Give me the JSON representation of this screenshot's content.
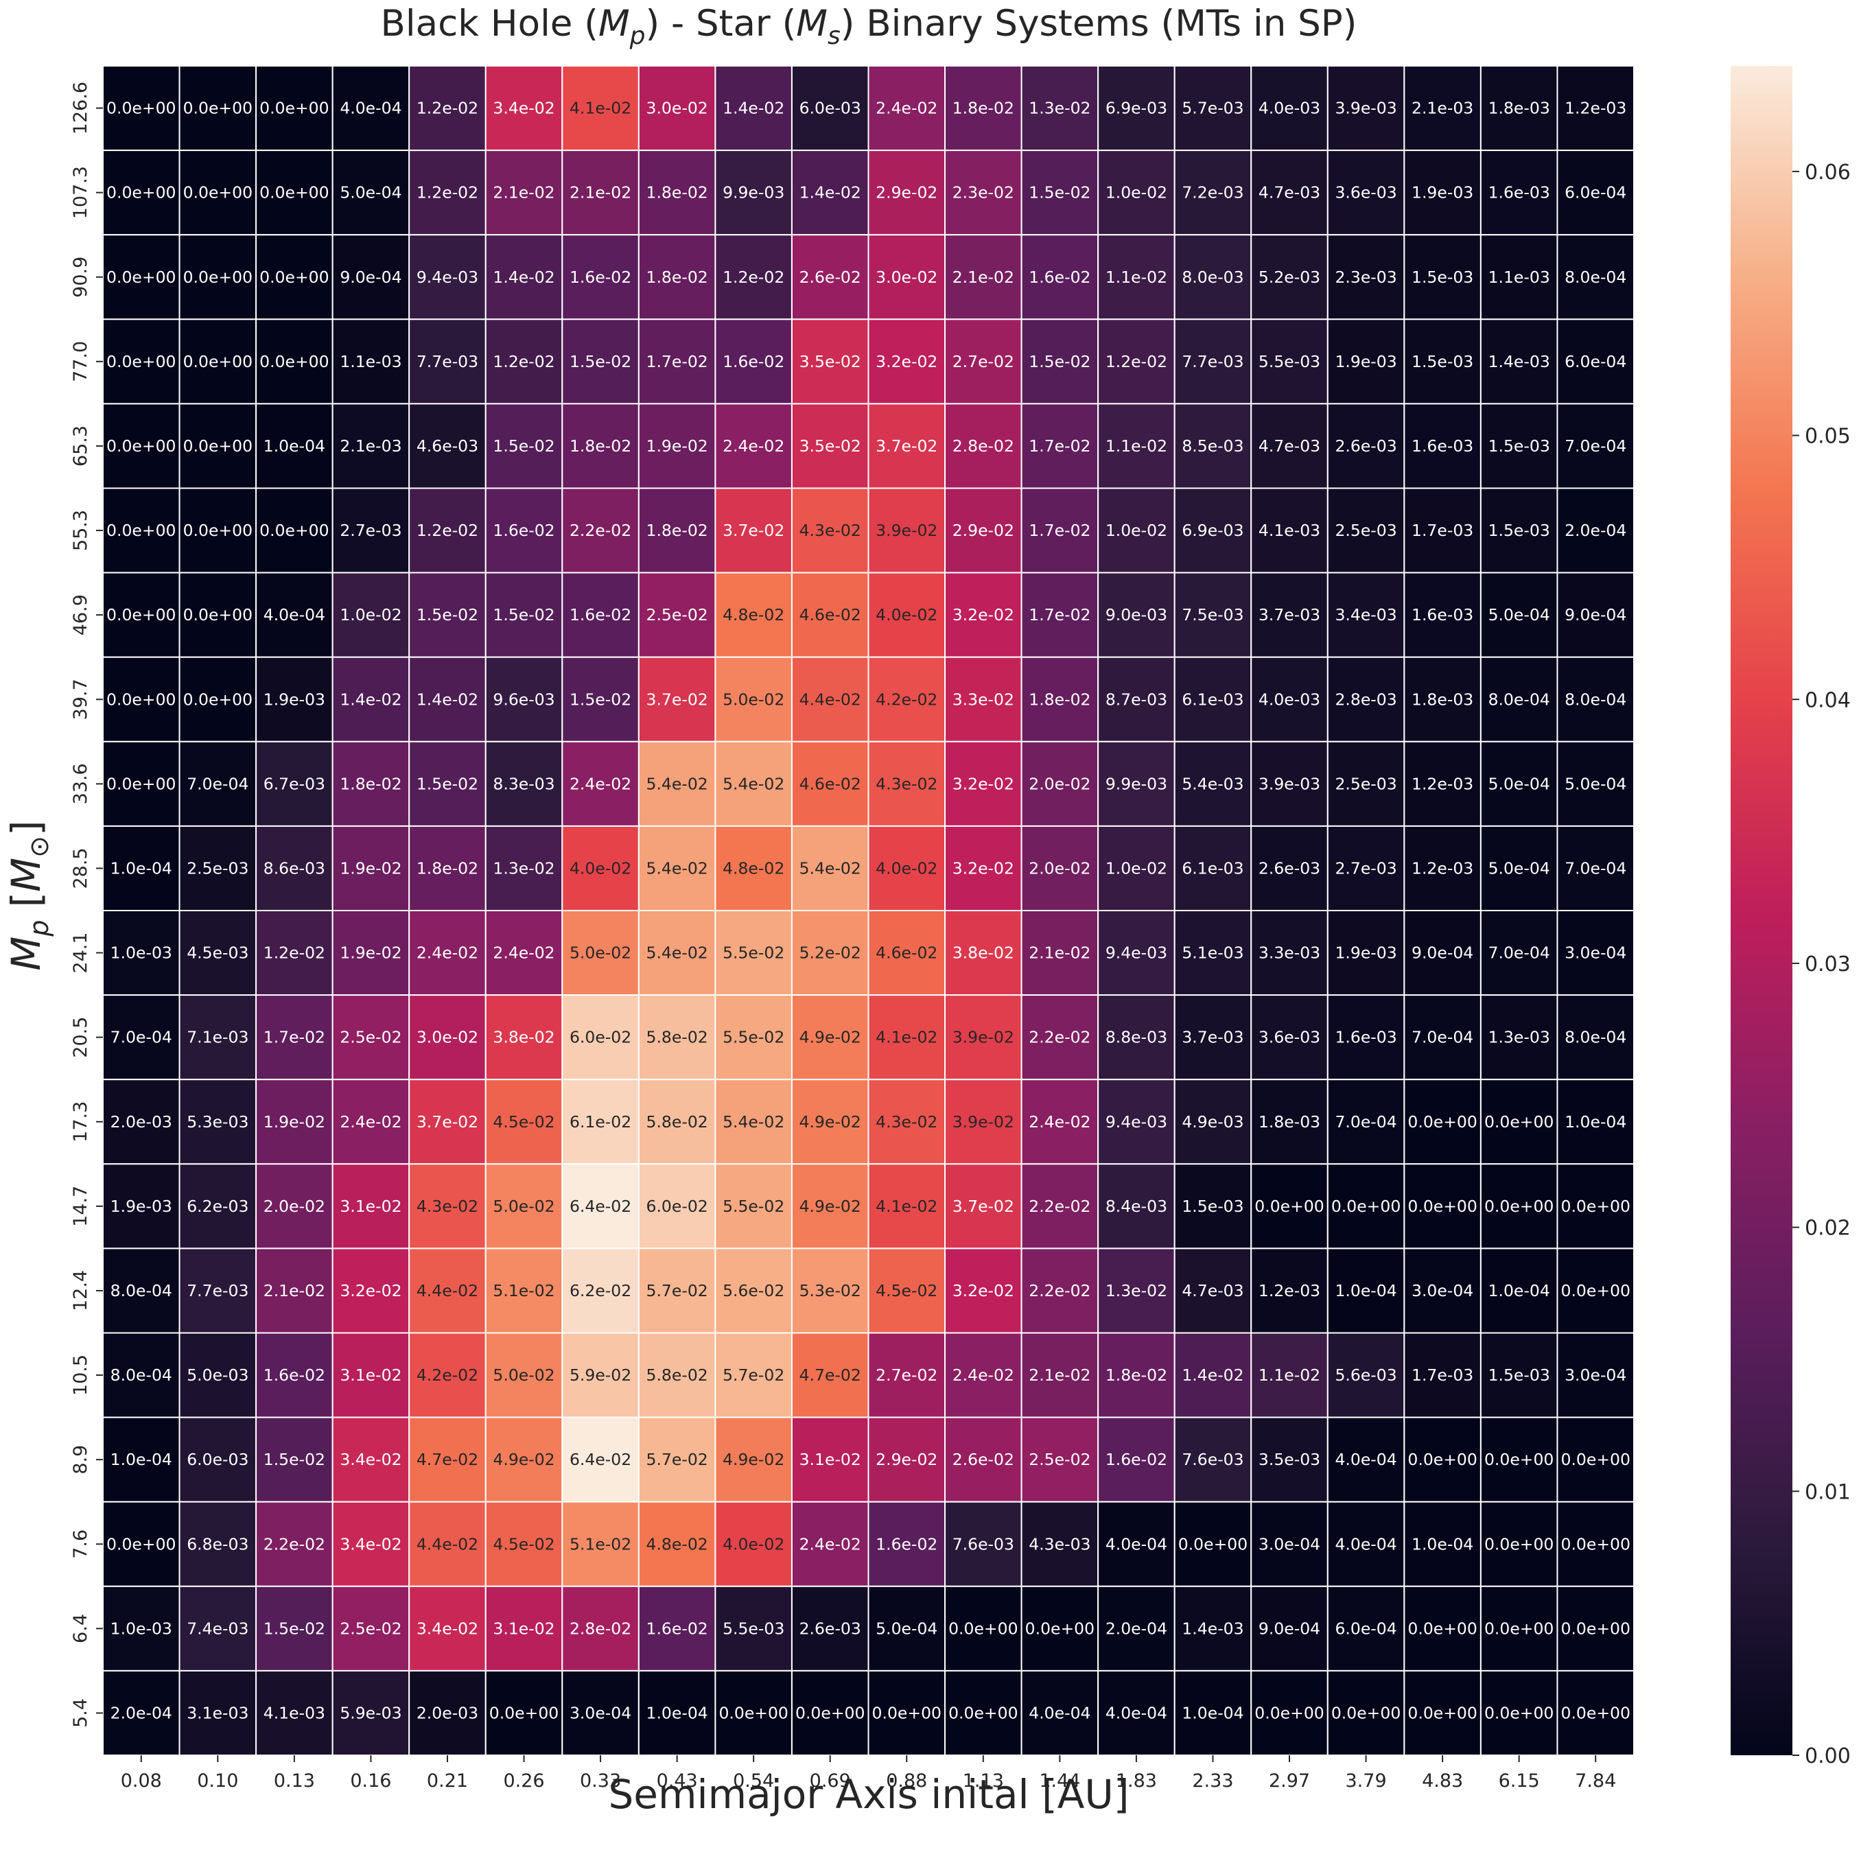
{
  "chart_data": {
    "type": "heatmap",
    "title": "Black Hole ($M_p$)  - Star ($M_s$) Binary Systems (MTs in SP)",
    "title_parts": {
      "p1": "Black Hole (",
      "m1": "M",
      "s1": "p",
      "p2": ")  - Star (",
      "m2": "M",
      "s2": "s",
      "p3": ") Binary Systems (MTs in SP)"
    },
    "xlabel": "Semimajor Axis inital [AU]",
    "ylabel": "$M_p$  [$M_{\\odot}$]",
    "ylabel_parts": {
      "m": "M",
      "sub": "p",
      "open": "[",
      "msun": "M",
      "odot": "⊙",
      "close": "]"
    },
    "x_categories": [
      "0.08",
      "0.10",
      "0.13",
      "0.16",
      "0.21",
      "0.26",
      "0.33",
      "0.43",
      "0.54",
      "0.69",
      "0.88",
      "1.13",
      "1.44",
      "1.83",
      "2.33",
      "2.97",
      "3.79",
      "4.83",
      "6.15",
      "7.84"
    ],
    "y_categories": [
      "126.6",
      "107.3",
      "90.9",
      "77.0",
      "65.3",
      "55.3",
      "46.9",
      "39.7",
      "33.6",
      "28.5",
      "24.1",
      "20.5",
      "17.3",
      "14.7",
      "12.4",
      "10.5",
      "8.9",
      "7.6",
      "6.4",
      "5.4"
    ],
    "values": [
      [
        0.0,
        0.0,
        0.0,
        0.0004,
        0.012,
        0.034,
        0.041,
        0.03,
        0.014,
        0.006,
        0.024,
        0.018,
        0.013,
        0.0069,
        0.0057,
        0.004,
        0.0039,
        0.0021,
        0.0018,
        0.0012
      ],
      [
        0.0,
        0.0,
        0.0,
        0.0005,
        0.012,
        0.021,
        0.021,
        0.018,
        0.0099,
        0.014,
        0.029,
        0.023,
        0.015,
        0.01,
        0.0072,
        0.0047,
        0.0036,
        0.0019,
        0.0016,
        0.0006
      ],
      [
        0.0,
        0.0,
        0.0,
        0.0009,
        0.0094,
        0.014,
        0.016,
        0.018,
        0.012,
        0.026,
        0.03,
        0.021,
        0.016,
        0.011,
        0.008,
        0.0052,
        0.0023,
        0.0015,
        0.0011,
        0.0008
      ],
      [
        0.0,
        0.0,
        0.0,
        0.0011,
        0.0077,
        0.012,
        0.015,
        0.017,
        0.016,
        0.035,
        0.032,
        0.027,
        0.015,
        0.012,
        0.0077,
        0.0055,
        0.0019,
        0.0015,
        0.0014,
        0.0006
      ],
      [
        0.0,
        0.0,
        0.0001,
        0.0021,
        0.0046,
        0.015,
        0.018,
        0.019,
        0.024,
        0.035,
        0.037,
        0.028,
        0.017,
        0.011,
        0.0085,
        0.0047,
        0.0026,
        0.0016,
        0.0015,
        0.0007
      ],
      [
        0.0,
        0.0,
        0.0,
        0.0027,
        0.012,
        0.016,
        0.022,
        0.018,
        0.037,
        0.043,
        0.039,
        0.029,
        0.017,
        0.01,
        0.0069,
        0.0041,
        0.0025,
        0.0017,
        0.0015,
        0.0002
      ],
      [
        0.0,
        0.0,
        0.0004,
        0.01,
        0.015,
        0.015,
        0.016,
        0.025,
        0.048,
        0.046,
        0.04,
        0.032,
        0.017,
        0.009,
        0.0075,
        0.0037,
        0.0034,
        0.0016,
        0.0005,
        0.0009
      ],
      [
        0.0,
        0.0,
        0.0019,
        0.014,
        0.014,
        0.0096,
        0.015,
        0.037,
        0.05,
        0.044,
        0.042,
        0.033,
        0.018,
        0.0087,
        0.0061,
        0.004,
        0.0028,
        0.0018,
        0.0008,
        0.0008
      ],
      [
        0.0,
        0.0007,
        0.0067,
        0.018,
        0.015,
        0.0083,
        0.024,
        0.054,
        0.054,
        0.046,
        0.043,
        0.032,
        0.02,
        0.0099,
        0.0054,
        0.0039,
        0.0025,
        0.0012,
        0.0005,
        0.0005
      ],
      [
        0.0001,
        0.0025,
        0.0086,
        0.019,
        0.018,
        0.013,
        0.04,
        0.054,
        0.048,
        0.054,
        0.04,
        0.032,
        0.02,
        0.01,
        0.0061,
        0.0026,
        0.0027,
        0.0012,
        0.0005,
        0.0007
      ],
      [
        0.001,
        0.0045,
        0.012,
        0.019,
        0.024,
        0.024,
        0.05,
        0.054,
        0.055,
        0.052,
        0.046,
        0.038,
        0.021,
        0.0094,
        0.0051,
        0.0033,
        0.0019,
        0.0009,
        0.0007,
        0.0003
      ],
      [
        0.0007,
        0.0071,
        0.017,
        0.025,
        0.03,
        0.038,
        0.06,
        0.058,
        0.055,
        0.049,
        0.041,
        0.039,
        0.022,
        0.0088,
        0.0037,
        0.0036,
        0.0016,
        0.0007,
        0.0013,
        0.0008
      ],
      [
        0.002,
        0.0053,
        0.019,
        0.024,
        0.037,
        0.045,
        0.061,
        0.058,
        0.054,
        0.049,
        0.043,
        0.039,
        0.024,
        0.0094,
        0.0049,
        0.0018,
        0.0007,
        0.0,
        0.0,
        0.0001
      ],
      [
        0.0019,
        0.0062,
        0.02,
        0.031,
        0.043,
        0.05,
        0.064,
        0.06,
        0.055,
        0.049,
        0.041,
        0.037,
        0.022,
        0.0084,
        0.0015,
        0.0,
        0.0,
        0.0,
        0.0,
        0.0
      ],
      [
        0.0008,
        0.0077,
        0.021,
        0.032,
        0.044,
        0.051,
        0.062,
        0.057,
        0.056,
        0.053,
        0.045,
        0.032,
        0.022,
        0.013,
        0.0047,
        0.0012,
        0.0001,
        0.0003,
        0.0001,
        0.0
      ],
      [
        0.0008,
        0.005,
        0.016,
        0.031,
        0.042,
        0.05,
        0.059,
        0.058,
        0.057,
        0.047,
        0.027,
        0.024,
        0.021,
        0.018,
        0.014,
        0.011,
        0.0056,
        0.0017,
        0.0015,
        0.0003
      ],
      [
        0.0001,
        0.006,
        0.015,
        0.034,
        0.047,
        0.049,
        0.064,
        0.057,
        0.049,
        0.031,
        0.029,
        0.026,
        0.025,
        0.016,
        0.0076,
        0.0035,
        0.0004,
        0.0,
        0.0,
        0.0
      ],
      [
        0.0,
        0.0068,
        0.022,
        0.034,
        0.044,
        0.045,
        0.051,
        0.048,
        0.04,
        0.024,
        0.016,
        0.0076,
        0.0043,
        0.0004,
        0.0,
        0.0003,
        0.0004,
        0.0001,
        0.0,
        0.0
      ],
      [
        0.001,
        0.0074,
        0.015,
        0.025,
        0.034,
        0.031,
        0.028,
        0.016,
        0.0055,
        0.0026,
        0.0005,
        0.0,
        0.0,
        0.0002,
        0.0014,
        0.0009,
        0.0006,
        0.0,
        0.0,
        0.0
      ],
      [
        0.0002,
        0.0031,
        0.0041,
        0.0059,
        0.002,
        0.0,
        0.0003,
        0.0001,
        0.0,
        0.0,
        0.0,
        0.0,
        0.0004,
        0.0004,
        0.0001,
        0.0,
        0.0,
        0.0,
        0.0,
        0.0
      ]
    ],
    "cell_labels": [
      [
        "0.0e+00",
        "0.0e+00",
        "0.0e+00",
        "4.0e-04",
        "1.2e-02",
        "3.4e-02",
        "4.1e-02",
        "3.0e-02",
        "1.4e-02",
        "6.0e-03",
        "2.4e-02",
        "1.8e-02",
        "1.3e-02",
        "6.9e-03",
        "5.7e-03",
        "4.0e-03",
        "3.9e-03",
        "2.1e-03",
        "1.8e-03",
        "1.2e-03"
      ],
      [
        "0.0e+00",
        "0.0e+00",
        "0.0e+00",
        "5.0e-04",
        "1.2e-02",
        "2.1e-02",
        "2.1e-02",
        "1.8e-02",
        "9.9e-03",
        "1.4e-02",
        "2.9e-02",
        "2.3e-02",
        "1.5e-02",
        "1.0e-02",
        "7.2e-03",
        "4.7e-03",
        "3.6e-03",
        "1.9e-03",
        "1.6e-03",
        "6.0e-04"
      ],
      [
        "0.0e+00",
        "0.0e+00",
        "0.0e+00",
        "9.0e-04",
        "9.4e-03",
        "1.4e-02",
        "1.6e-02",
        "1.8e-02",
        "1.2e-02",
        "2.6e-02",
        "3.0e-02",
        "2.1e-02",
        "1.6e-02",
        "1.1e-02",
        "8.0e-03",
        "5.2e-03",
        "2.3e-03",
        "1.5e-03",
        "1.1e-03",
        "8.0e-04"
      ],
      [
        "0.0e+00",
        "0.0e+00",
        "0.0e+00",
        "1.1e-03",
        "7.7e-03",
        "1.2e-02",
        "1.5e-02",
        "1.7e-02",
        "1.6e-02",
        "3.5e-02",
        "3.2e-02",
        "2.7e-02",
        "1.5e-02",
        "1.2e-02",
        "7.7e-03",
        "5.5e-03",
        "1.9e-03",
        "1.5e-03",
        "1.4e-03",
        "6.0e-04"
      ],
      [
        "0.0e+00",
        "0.0e+00",
        "1.0e-04",
        "2.1e-03",
        "4.6e-03",
        "1.5e-02",
        "1.8e-02",
        "1.9e-02",
        "2.4e-02",
        "3.5e-02",
        "3.7e-02",
        "2.8e-02",
        "1.7e-02",
        "1.1e-02",
        "8.5e-03",
        "4.7e-03",
        "2.6e-03",
        "1.6e-03",
        "1.5e-03",
        "7.0e-04"
      ],
      [
        "0.0e+00",
        "0.0e+00",
        "0.0e+00",
        "2.7e-03",
        "1.2e-02",
        "1.6e-02",
        "2.2e-02",
        "1.8e-02",
        "3.7e-02",
        "4.3e-02",
        "3.9e-02",
        "2.9e-02",
        "1.7e-02",
        "1.0e-02",
        "6.9e-03",
        "4.1e-03",
        "2.5e-03",
        "1.7e-03",
        "1.5e-03",
        "2.0e-04"
      ],
      [
        "0.0e+00",
        "0.0e+00",
        "4.0e-04",
        "1.0e-02",
        "1.5e-02",
        "1.5e-02",
        "1.6e-02",
        "2.5e-02",
        "4.8e-02",
        "4.6e-02",
        "4.0e-02",
        "3.2e-02",
        "1.7e-02",
        "9.0e-03",
        "7.5e-03",
        "3.7e-03",
        "3.4e-03",
        "1.6e-03",
        "5.0e-04",
        "9.0e-04"
      ],
      [
        "0.0e+00",
        "0.0e+00",
        "1.9e-03",
        "1.4e-02",
        "1.4e-02",
        "9.6e-03",
        "1.5e-02",
        "3.7e-02",
        "5.0e-02",
        "4.4e-02",
        "4.2e-02",
        "3.3e-02",
        "1.8e-02",
        "8.7e-03",
        "6.1e-03",
        "4.0e-03",
        "2.8e-03",
        "1.8e-03",
        "8.0e-04",
        "8.0e-04"
      ],
      [
        "0.0e+00",
        "7.0e-04",
        "6.7e-03",
        "1.8e-02",
        "1.5e-02",
        "8.3e-03",
        "2.4e-02",
        "5.4e-02",
        "5.4e-02",
        "4.6e-02",
        "4.3e-02",
        "3.2e-02",
        "2.0e-02",
        "9.9e-03",
        "5.4e-03",
        "3.9e-03",
        "2.5e-03",
        "1.2e-03",
        "5.0e-04",
        "5.0e-04"
      ],
      [
        "1.0e-04",
        "2.5e-03",
        "8.6e-03",
        "1.9e-02",
        "1.8e-02",
        "1.3e-02",
        "4.0e-02",
        "5.4e-02",
        "4.8e-02",
        "5.4e-02",
        "4.0e-02",
        "3.2e-02",
        "2.0e-02",
        "1.0e-02",
        "6.1e-03",
        "2.6e-03",
        "2.7e-03",
        "1.2e-03",
        "5.0e-04",
        "7.0e-04"
      ],
      [
        "1.0e-03",
        "4.5e-03",
        "1.2e-02",
        "1.9e-02",
        "2.4e-02",
        "2.4e-02",
        "5.0e-02",
        "5.4e-02",
        "5.5e-02",
        "5.2e-02",
        "4.6e-02",
        "3.8e-02",
        "2.1e-02",
        "9.4e-03",
        "5.1e-03",
        "3.3e-03",
        "1.9e-03",
        "9.0e-04",
        "7.0e-04",
        "3.0e-04"
      ],
      [
        "7.0e-04",
        "7.1e-03",
        "1.7e-02",
        "2.5e-02",
        "3.0e-02",
        "3.8e-02",
        "6.0e-02",
        "5.8e-02",
        "5.5e-02",
        "4.9e-02",
        "4.1e-02",
        "3.9e-02",
        "2.2e-02",
        "8.8e-03",
        "3.7e-03",
        "3.6e-03",
        "1.6e-03",
        "7.0e-04",
        "1.3e-03",
        "8.0e-04"
      ],
      [
        "2.0e-03",
        "5.3e-03",
        "1.9e-02",
        "2.4e-02",
        "3.7e-02",
        "4.5e-02",
        "6.1e-02",
        "5.8e-02",
        "5.4e-02",
        "4.9e-02",
        "4.3e-02",
        "3.9e-02",
        "2.4e-02",
        "9.4e-03",
        "4.9e-03",
        "1.8e-03",
        "7.0e-04",
        "0.0e+00",
        "0.0e+00",
        "1.0e-04"
      ],
      [
        "1.9e-03",
        "6.2e-03",
        "2.0e-02",
        "3.1e-02",
        "4.3e-02",
        "5.0e-02",
        "6.4e-02",
        "6.0e-02",
        "5.5e-02",
        "4.9e-02",
        "4.1e-02",
        "3.7e-02",
        "2.2e-02",
        "8.4e-03",
        "1.5e-03",
        "0.0e+00",
        "0.0e+00",
        "0.0e+00",
        "0.0e+00",
        "0.0e+00"
      ],
      [
        "8.0e-04",
        "7.7e-03",
        "2.1e-02",
        "3.2e-02",
        "4.4e-02",
        "5.1e-02",
        "6.2e-02",
        "5.7e-02",
        "5.6e-02",
        "5.3e-02",
        "4.5e-02",
        "3.2e-02",
        "2.2e-02",
        "1.3e-02",
        "4.7e-03",
        "1.2e-03",
        "1.0e-04",
        "3.0e-04",
        "1.0e-04",
        "0.0e+00"
      ],
      [
        "8.0e-04",
        "5.0e-03",
        "1.6e-02",
        "3.1e-02",
        "4.2e-02",
        "5.0e-02",
        "5.9e-02",
        "5.8e-02",
        "5.7e-02",
        "4.7e-02",
        "2.7e-02",
        "2.4e-02",
        "2.1e-02",
        "1.8e-02",
        "1.4e-02",
        "1.1e-02",
        "5.6e-03",
        "1.7e-03",
        "1.5e-03",
        "3.0e-04"
      ],
      [
        "1.0e-04",
        "6.0e-03",
        "1.5e-02",
        "3.4e-02",
        "4.7e-02",
        "4.9e-02",
        "6.4e-02",
        "5.7e-02",
        "4.9e-02",
        "3.1e-02",
        "2.9e-02",
        "2.6e-02",
        "2.5e-02",
        "1.6e-02",
        "7.6e-03",
        "3.5e-03",
        "4.0e-04",
        "0.0e+00",
        "0.0e+00",
        "0.0e+00"
      ],
      [
        "0.0e+00",
        "6.8e-03",
        "2.2e-02",
        "3.4e-02",
        "4.4e-02",
        "4.5e-02",
        "5.1e-02",
        "4.8e-02",
        "4.0e-02",
        "2.4e-02",
        "1.6e-02",
        "7.6e-03",
        "4.3e-03",
        "4.0e-04",
        "0.0e+00",
        "3.0e-04",
        "4.0e-04",
        "1.0e-04",
        "0.0e+00",
        "0.0e+00"
      ],
      [
        "1.0e-03",
        "7.4e-03",
        "1.5e-02",
        "2.5e-02",
        "3.4e-02",
        "3.1e-02",
        "2.8e-02",
        "1.6e-02",
        "5.5e-03",
        "2.6e-03",
        "5.0e-04",
        "0.0e+00",
        "0.0e+00",
        "2.0e-04",
        "1.4e-03",
        "9.0e-04",
        "6.0e-04",
        "0.0e+00",
        "0.0e+00",
        "0.0e+00"
      ],
      [
        "2.0e-04",
        "3.1e-03",
        "4.1e-03",
        "5.9e-03",
        "2.0e-03",
        "0.0e+00",
        "3.0e-04",
        "1.0e-04",
        "0.0e+00",
        "0.0e+00",
        "0.0e+00",
        "0.0e+00",
        "4.0e-04",
        "4.0e-04",
        "1.0e-04",
        "0.0e+00",
        "0.0e+00",
        "0.0e+00",
        "0.0e+00",
        "0.0e+00"
      ]
    ],
    "colorbar": {
      "colormap": "rocket",
      "vmin": 0.0,
      "vmax": 0.064,
      "ticks": [
        0.0,
        0.01,
        0.02,
        0.03,
        0.04,
        0.05,
        0.06
      ],
      "tick_labels": [
        "0.00",
        "0.01",
        "0.02",
        "0.03",
        "0.04",
        "0.05",
        "0.06"
      ]
    },
    "grid": "white cell separators",
    "legend": "colorbar right"
  }
}
